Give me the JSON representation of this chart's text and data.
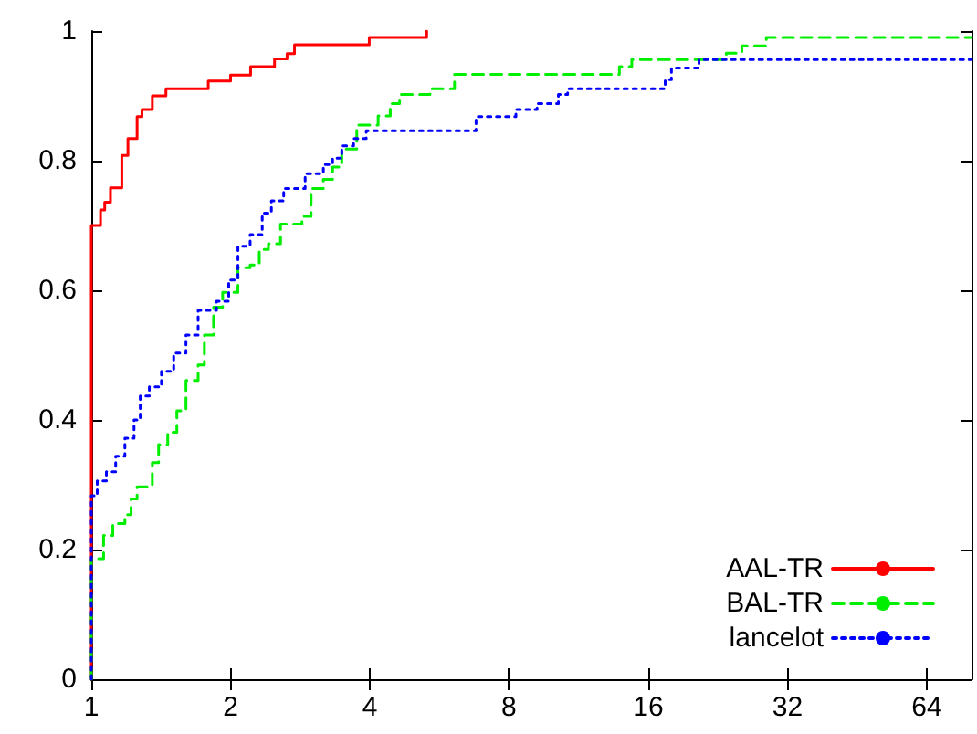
{
  "chart_data": {
    "type": "step",
    "log": "x",
    "xlim": [
      1,
      80
    ],
    "xticks": [
      1,
      2,
      4,
      8,
      16,
      32,
      64
    ],
    "ylim": [
      0,
      1
    ],
    "yticks": [
      0,
      0.2,
      0.4,
      0.6,
      0.8,
      1
    ],
    "grid": false,
    "legend": "bottom right",
    "marker": "none",
    "series": [
      {
        "name": "AAL-TR",
        "color": "#ff0000",
        "line_style": "solid",
        "x": [
          1,
          1,
          1.047,
          1.069,
          1.1,
          1.164,
          1.2,
          1.256,
          1.287,
          1.355,
          1.45,
          1.79,
          2,
          2.21,
          2.49,
          2.65,
          2.75,
          3.99,
          5.31
        ],
        "values": [
          0,
          0.7,
          0.724,
          0.736,
          0.758,
          0.808,
          0.834,
          0.868,
          0.879,
          0.9,
          0.911,
          0.923,
          0.932,
          0.945,
          0.957,
          0.965,
          0.979,
          0.99,
          1
        ]
      },
      {
        "name": "BAL-TR",
        "color": "#00ee00",
        "line_style": "dashed",
        "x": [
          1,
          1,
          1.063,
          1.113,
          1.182,
          1.219,
          1.256,
          1.355,
          1.398,
          1.463,
          1.531,
          1.602,
          1.702,
          1.756,
          1.838,
          1.923,
          2.075,
          2.205,
          2.308,
          2.415,
          2.565,
          2.854,
          2.987,
          3.175,
          3.324,
          3.48,
          3.75,
          4.17,
          4.43,
          4.64,
          5.4,
          6.1,
          13.86,
          14.74,
          23.6,
          25.5,
          28.8,
          80
        ],
        "values": [
          0,
          0.186,
          0.222,
          0.24,
          0.254,
          0.278,
          0.297,
          0.334,
          0.362,
          0.381,
          0.414,
          0.461,
          0.485,
          0.531,
          0.574,
          0.597,
          0.635,
          0.639,
          0.663,
          0.672,
          0.702,
          0.714,
          0.757,
          0.771,
          0.79,
          0.818,
          0.855,
          0.869,
          0.888,
          0.902,
          0.911,
          0.933,
          0.945,
          0.956,
          0.966,
          0.977,
          0.99,
          0.99
        ]
      },
      {
        "name": "lancelot",
        "color": "#0000ff",
        "line_style": "dotted",
        "x": [
          1,
          1,
          1.03,
          1.078,
          1.129,
          1.182,
          1.237,
          1.276,
          1.335,
          1.418,
          1.507,
          1.602,
          1.702,
          1.865,
          1.982,
          2.075,
          2.205,
          2.342,
          2.451,
          2.606,
          2.9,
          3.175,
          3.324,
          3.48,
          3.69,
          3.93,
          6.79,
          8.28,
          9.2,
          10.23,
          10.71,
          17.41,
          17.96,
          20.6,
          80
        ],
        "values": [
          0,
          0.283,
          0.306,
          0.32,
          0.344,
          0.372,
          0.4,
          0.437,
          0.451,
          0.475,
          0.503,
          0.531,
          0.569,
          0.583,
          0.616,
          0.668,
          0.686,
          0.719,
          0.738,
          0.757,
          0.78,
          0.794,
          0.804,
          0.823,
          0.834,
          0.846,
          0.868,
          0.879,
          0.888,
          0.902,
          0.911,
          0.925,
          0.943,
          0.956,
          0.956
        ]
      }
    ]
  }
}
